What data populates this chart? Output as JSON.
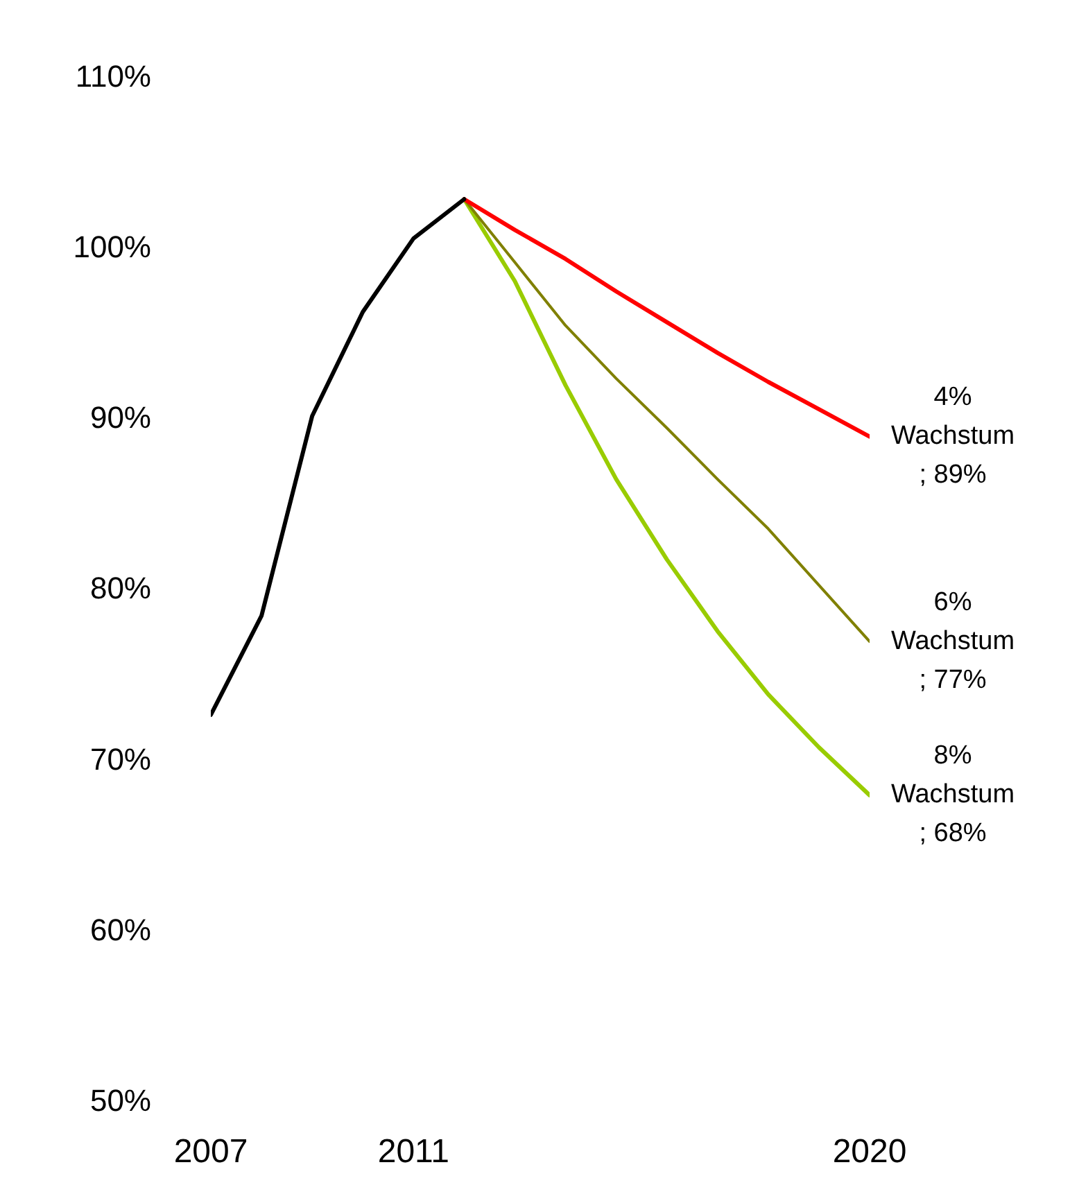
{
  "chart_data": {
    "type": "line",
    "series": [
      {
        "color": "#000000",
        "x": [
          2007,
          2008,
          2009,
          2010,
          2011,
          2012
        ],
        "values": [
          72.7,
          78.5,
          90.2,
          96.3,
          100.6,
          102.9
        ]
      },
      {
        "name": "4% Wachstum",
        "color": "#ff0000",
        "x": [
          2012,
          2013,
          2014,
          2015,
          2016,
          2017,
          2018,
          2019,
          2020
        ],
        "values": [
          102.9,
          101.1,
          99.4,
          97.5,
          95.7,
          93.9,
          92.2,
          90.6,
          89
        ],
        "value_labels": [
          null,
          null,
          null,
          null,
          null,
          null,
          null,
          null,
          "; 89%"
        ]
      },
      {
        "name": "6% Wachstum",
        "color": "#808000",
        "x": [
          2012,
          2013,
          2014,
          2015,
          2016,
          2017,
          2018,
          2019,
          2020
        ],
        "values": [
          102.9,
          99.2,
          95.5,
          92.4,
          89.5,
          86.5,
          83.6,
          80.3,
          77
        ],
        "value_labels": [
          null,
          null,
          null,
          null,
          null,
          null,
          null,
          null,
          "; 77%"
        ]
      },
      {
        "name": "8% Wachstum",
        "color": "#99cc00",
        "x": [
          2012,
          2013,
          2014,
          2015,
          2016,
          2017,
          2018,
          2019,
          2020
        ],
        "values": [
          102.9,
          98.1,
          92.0,
          86.5,
          81.8,
          77.6,
          73.9,
          70.8,
          68
        ],
        "value_labels": [
          null,
          null,
          null,
          null,
          null,
          null,
          null,
          null,
          "; 68%"
        ]
      }
    ],
    "xlim": [
      2007,
      2020
    ],
    "xticks": [
      2007,
      2011,
      2020
    ],
    "ylim": [
      50,
      110
    ],
    "yticks": [
      {
        "value": 50,
        "label": "50%"
      },
      {
        "value": 60,
        "label": "60%"
      },
      {
        "value": 70,
        "label": "70%"
      },
      {
        "value": 80,
        "label": "80%"
      },
      {
        "value": 90,
        "label": "90%"
      },
      {
        "value": 100,
        "label": "100%"
      },
      {
        "value": 110,
        "label": "110%"
      }
    ],
    "grid": false,
    "legend": false,
    "marker": "none",
    "line_style": "solid"
  }
}
